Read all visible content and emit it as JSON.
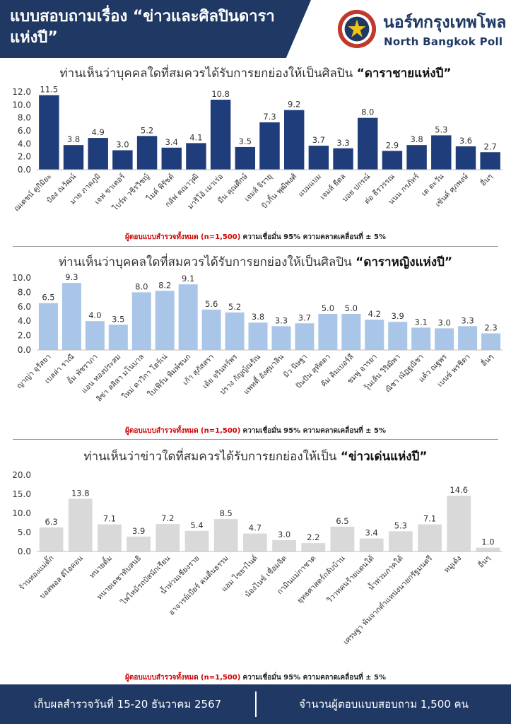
{
  "header": {
    "title": "แบบสอบถามเรื่อง “ข่าวและศิลปินดาราแห่งปี”",
    "brand_th": "นอร์ทกรุงเทพโพล",
    "brand_en": "North Bangkok Poll"
  },
  "colors": {
    "header_bg": "#1f3864",
    "male_bar": "#1f3d7a",
    "female_bar": "#a9c6e8",
    "news_bar": "#d9d9d9",
    "note_red": "#d00000"
  },
  "sample_note": {
    "respondents": "ผู้ตอบแบบสำรวจทั้งหมด (n=1,500)",
    "confidence": "ความเชื่อมั่น 95% ความคลาดเคลื่อนที่ ± 5%"
  },
  "chart_data": [
    {
      "type": "bar",
      "title_prefix": "ท่านเห็นว่าบุคคลใดที่สมควรได้รับการยกย่องให้เป็นศิลปิน",
      "title_emphasis": "“ดาราชายแห่งปี”",
      "categories": [
        "ณเดชน์ คูกิมิยะ",
        "ป๋อง ณวัฒน์",
        "มาย ภาคภูมิ",
        "เจฟ ซาเตอร์",
        "ไบร์ท วชิรวิชญ์",
        "ไมค์ พิรัชต์",
        "กลัฟ คณาวุฒิ",
        "มาริโอ้ เมาเร่อ",
        "มีน คุณศึกษ์",
        "เจมส์ จิรายุ",
        "บิวกิ้น พุฒิพงศ์",
        "แบมแบม",
        "เจมส์ ธีดล",
        "บอย ปกรณ์",
        "ต่อ ธีรวรรณ",
        "นนน กรภัทร์",
        "เต ตะวัน",
        "เซ้นต์ ศุภพงษ์",
        "อื่นๆ"
      ],
      "values": [
        11.5,
        3.8,
        4.9,
        3.0,
        5.2,
        3.4,
        4.1,
        10.8,
        3.5,
        7.3,
        9.2,
        3.7,
        3.3,
        8.0,
        2.9,
        3.8,
        5.3,
        3.6,
        2.7
      ],
      "ylim": [
        0,
        12
      ],
      "yticks": [
        "0.0",
        "2.0",
        "4.0",
        "6.0",
        "8.0",
        "10.0",
        "12.0"
      ],
      "color": "#1f3d7a"
    },
    {
      "type": "bar",
      "title_prefix": "ท่านเห็นว่าบุคคลใดที่สมควรได้รับการยกย่องให้เป็นศิลปิน",
      "title_emphasis": "“ดาราหญิงแห่งปี”",
      "categories": [
        "ญาญ่า อุรัสยา",
        "เบลล่า ราณี",
        "อั้ม พัชราภา",
        "แอน ทองประสม",
        "ลิซ่า ลลิสา มโนบาล",
        "ใหม่ ดาวิกา โฮร์เน่",
        "ใบเฟิร์น พิมพ์ชนก",
        "เก้า สุภัสสรา",
        "เต้ย จรินทร์พร",
        "ปราง กัญญ์ณรัณ",
        "แพทตี้ อังศุมาลิน",
        "มิว นิษฐา",
        "ปันปัน สุทัตตา",
        "คิม คิมเบอร์ลี",
        "ชมพู่ อารยา",
        "วุ้นเส้น วิริฒิพา",
        "ณิชา ณัฏฐณิชา",
        "แต้ว ณฐพร",
        "เบนซ์ พรชิตา",
        "อื่นๆ"
      ],
      "values": [
        6.5,
        9.3,
        4.0,
        3.5,
        8.0,
        8.2,
        9.1,
        5.6,
        5.2,
        3.8,
        3.3,
        3.7,
        5.0,
        5.0,
        4.2,
        3.9,
        3.1,
        3.0,
        3.3,
        2.3
      ],
      "ylim": [
        0,
        10
      ],
      "yticks": [
        "0.0",
        "2.0",
        "4.0",
        "6.0",
        "8.0",
        "10.0"
      ],
      "color": "#a9c6e8"
    },
    {
      "type": "bar",
      "title_prefix": "ท่านเห็นว่าข่าวใดที่สมควรได้รับการยกย่องให้เป็น",
      "title_emphasis": "“ข่าวเด่นแห่งปี”",
      "categories": [
        "ร้านทองแม่ตั๊ก",
        "บอสพอล ดิไอคอน",
        "ทนายตั้ม",
        "ทนายเดชาทับสนธิ",
        "ไฟไหม้รถบัสนักเรียน",
        "น้ำท่วมเชียงราย",
        "อาจารย์เบียร์ คนตื่นธรรม",
        "แอม ไซยาไนด์",
        "น้องไนซ์ เชื่อมจิต",
        "กามินแม่กาชาด",
        "ยุทธศาสตร์กลับบ้าน",
        "วิวาทคนร้ายแดนใต้",
        "น้ำท่วมภาคใต้",
        "เศรษฐา พ้นจากตำแหน่งนายกรัฐมนตรี",
        "หมูเด้ง",
        "อื่นๆ"
      ],
      "values": [
        6.3,
        13.8,
        7.1,
        3.9,
        7.2,
        5.4,
        8.5,
        4.7,
        3.0,
        2.2,
        6.5,
        3.4,
        5.3,
        7.1,
        14.6,
        1.0
      ],
      "ylim": [
        0,
        20
      ],
      "yticks": [
        "0.0",
        "5.0",
        "10.0",
        "15.0",
        "20.0"
      ],
      "color": "#d9d9d9"
    }
  ],
  "footer": {
    "left": "เก็บผลสำรวจวันที่ 15-20 ธันวาคม 2567",
    "right": "จำนวนผู้ตอบแบบสอบถาม 1,500 คน"
  }
}
